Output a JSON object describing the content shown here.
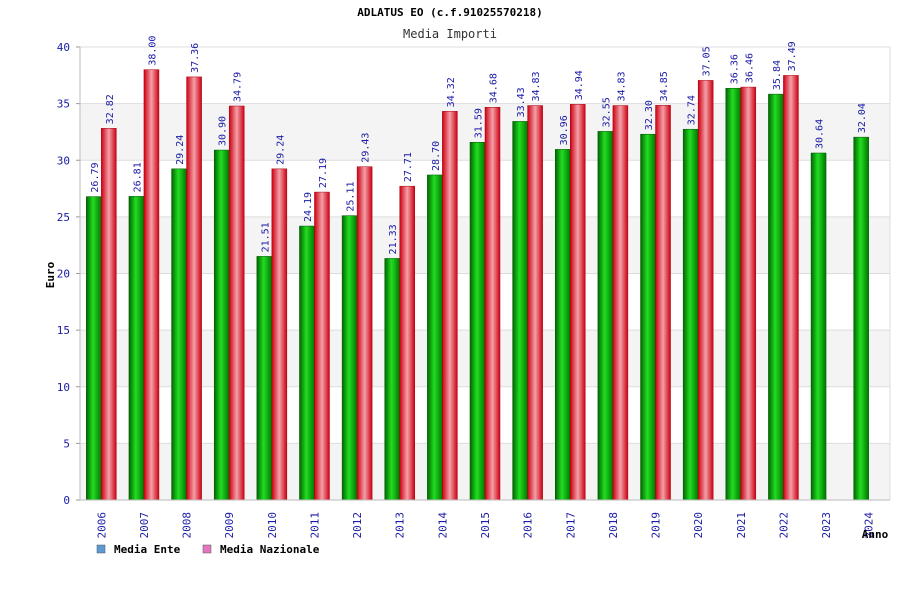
{
  "chart_data": {
    "type": "bar",
    "title": "ADLATUS EO (c.f.91025570218)",
    "subtitle": "Media Importi",
    "xlabel": "Anno",
    "ylabel": "Euro",
    "ylim": [
      0,
      40
    ],
    "yticks": [
      0,
      5,
      10,
      15,
      20,
      25,
      30,
      35,
      40
    ],
    "categories": [
      "2006",
      "2007",
      "2008",
      "2009",
      "2010",
      "2011",
      "2012",
      "2013",
      "2014",
      "2015",
      "2016",
      "2017",
      "2018",
      "2019",
      "2020",
      "2021",
      "2022",
      "2023",
      "2024"
    ],
    "series": [
      {
        "name": "Media Ente",
        "color": "#00aa00",
        "values": [
          26.79,
          26.81,
          29.24,
          30.9,
          21.51,
          24.19,
          25.11,
          21.33,
          28.7,
          31.59,
          33.43,
          30.96,
          32.55,
          32.3,
          32.74,
          36.36,
          35.84,
          30.64,
          32.04
        ],
        "labels": [
          "26.79",
          "26.81",
          "29.24",
          "30.90",
          "21.51",
          "24.19",
          "25.11",
          "21.33",
          "28.70",
          "31.59",
          "33.43",
          "30.96",
          "32.55",
          "32.30",
          "32.74",
          "36.36",
          "35.84",
          "30.64",
          "32.04"
        ]
      },
      {
        "name": "Media Nazionale",
        "color": "#dd1122",
        "values": [
          32.82,
          38.0,
          37.36,
          34.79,
          29.24,
          27.19,
          29.43,
          27.71,
          34.32,
          34.68,
          34.83,
          34.94,
          34.83,
          34.85,
          37.05,
          36.46,
          37.49,
          null,
          null
        ],
        "labels": [
          "32.82",
          "38.00",
          "37.36",
          "34.79",
          "29.24",
          "27.19",
          "29.43",
          "27.71",
          "34.32",
          "34.68",
          "34.83",
          "34.94",
          "34.83",
          "34.85",
          "37.05",
          "36.46",
          "37.49",
          null,
          null
        ]
      }
    ],
    "legend": [
      {
        "label": "Media Ente",
        "swatch": "#5b9bd5"
      },
      {
        "label": "Media Nazionale",
        "swatch": "#e377c2"
      }
    ],
    "legend_position": "bottom-left",
    "grid": true
  }
}
